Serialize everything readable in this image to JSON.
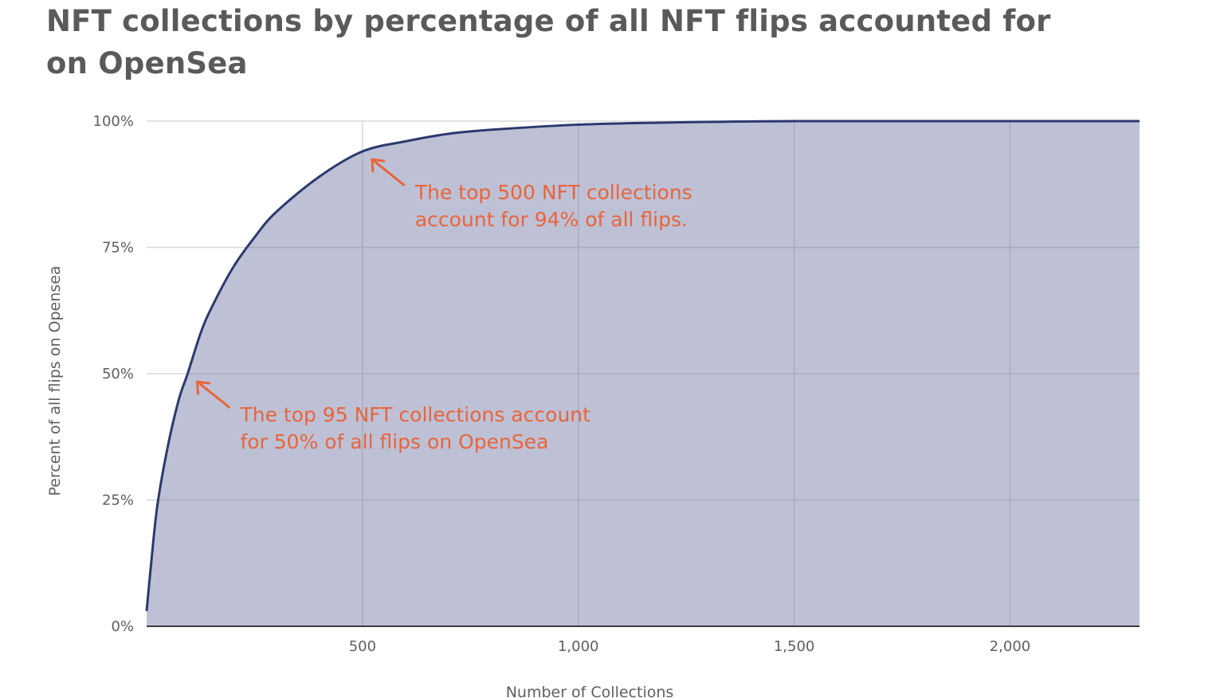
{
  "chart_data": {
    "type": "area",
    "title": "NFT collections by percentage of all NFT flips accounted for on OpenSea",
    "xlabel": "Number of Collections",
    "ylabel": "Percent of all flips on Opensea",
    "xlim": [
      0,
      2300
    ],
    "ylim": [
      0,
      100
    ],
    "x_ticks": [
      500,
      1000,
      1500,
      2000
    ],
    "x_tick_labels": [
      "500",
      "1,000",
      "1,500",
      "2,000"
    ],
    "y_ticks": [
      0,
      25,
      50,
      75,
      100
    ],
    "y_tick_labels": [
      "0%",
      "25%",
      "50%",
      "75%",
      "100%"
    ],
    "grid": true,
    "series": [
      {
        "x": [
          0,
          10,
          25,
          50,
          75,
          95,
          125,
          150,
          200,
          250,
          300,
          400,
          500,
          600,
          700,
          800,
          1000,
          1200,
          1500,
          2000,
          2300
        ],
        "y": [
          3,
          12,
          24,
          36,
          45,
          50,
          58,
          63,
          71,
          77,
          82,
          89,
          94,
          96,
          97.5,
          98.3,
          99.3,
          99.7,
          100,
          100,
          100
        ]
      }
    ],
    "colors": {
      "fill": "#bec1d6",
      "line": "#2b3a6e",
      "annotation": "#e8653a",
      "grid": "#a8abbd"
    },
    "annotations": [
      {
        "x": 500,
        "y": 94,
        "lines": [
          "The top 500 NFT collections",
          "account for 94% of all flips."
        ]
      },
      {
        "x": 95,
        "y": 50,
        "lines": [
          "The top 95 NFT collections account",
          "for 50% of all flips on OpenSea"
        ]
      }
    ]
  }
}
